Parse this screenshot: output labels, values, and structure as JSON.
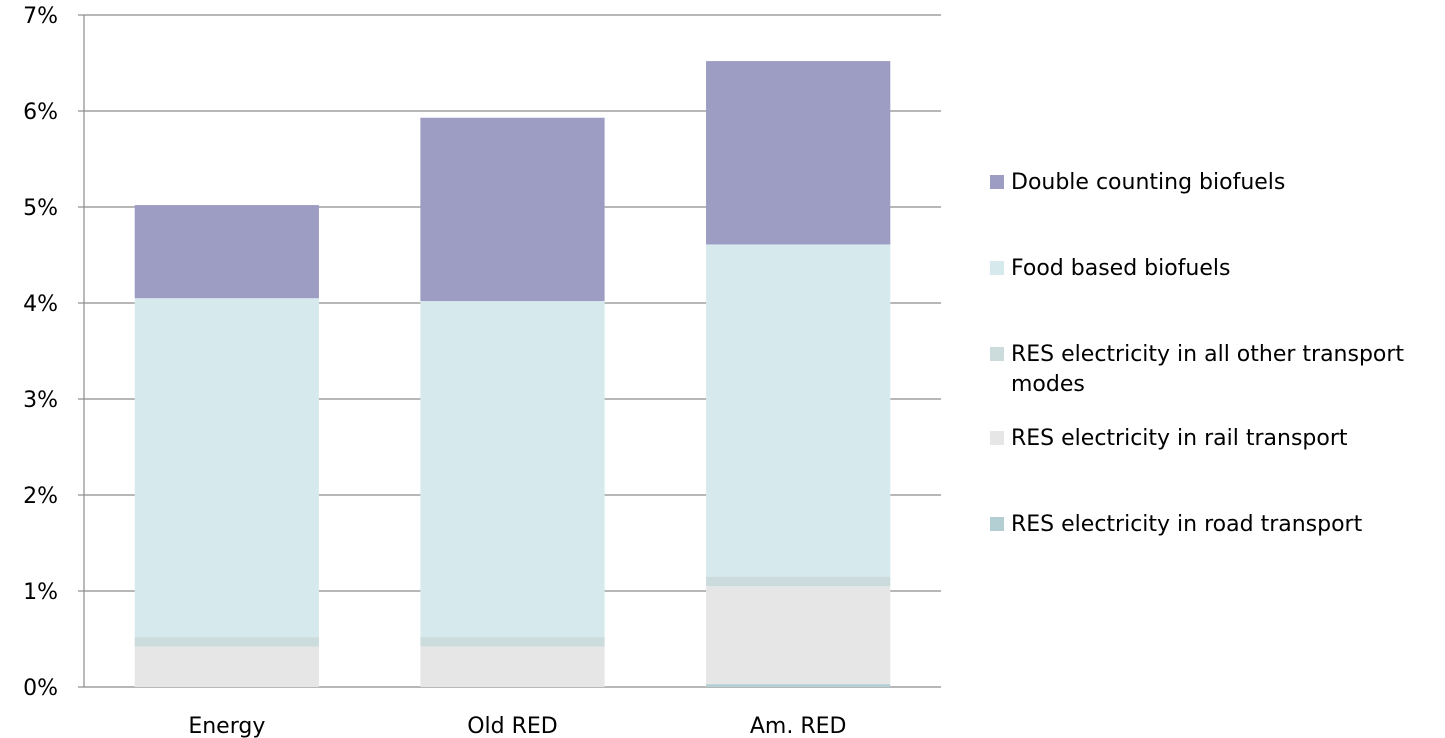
{
  "chart_data": {
    "type": "bar",
    "stacked": true,
    "categories": [
      "Energy",
      "Old RED",
      "Am. RED"
    ],
    "ylim": [
      0,
      7
    ],
    "yticks": [
      "0%",
      "1%",
      "2%",
      "3%",
      "4%",
      "5%",
      "6%",
      "7%"
    ],
    "grid": true,
    "legend_position": "right",
    "series": [
      {
        "name": "RES electricity in road transport",
        "values": [
          0.0,
          0.0,
          0.03
        ],
        "color": "#b4cfd3"
      },
      {
        "name": "RES electricity in rail transport",
        "values": [
          0.42,
          0.42,
          1.02
        ],
        "color": "#e6e6e6"
      },
      {
        "name": "RES electricity in all other transport modes",
        "values": [
          0.1,
          0.1,
          0.1
        ],
        "color": "#ccdcdc"
      },
      {
        "name": "Food based biofuels",
        "values": [
          3.53,
          3.5,
          3.46
        ],
        "color": "#d6eaed"
      },
      {
        "name": "Double counting biofuels",
        "values": [
          0.97,
          1.91,
          1.91
        ],
        "color": "#9d9dc4"
      }
    ]
  }
}
